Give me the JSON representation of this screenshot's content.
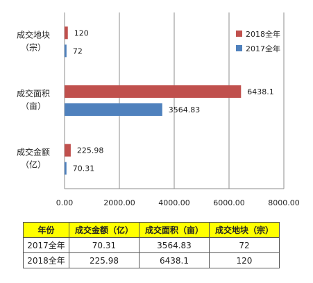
{
  "chart_data": {
    "type": "bar",
    "orientation": "horizontal",
    "categories": [
      "成交地块\n（宗）",
      "成交面积\n（亩）",
      "成交金额\n（亿）"
    ],
    "series": [
      {
        "name": "2018全年",
        "values": [
          120,
          6438.1,
          225.98
        ],
        "labels": [
          "120",
          "6438.1",
          "225.98"
        ],
        "color": "#c0504d"
      },
      {
        "name": "2017全年",
        "values": [
          72,
          3564.83,
          70.31
        ],
        "labels": [
          "72",
          "3564.83",
          "70.31"
        ],
        "color": "#4f81bd"
      }
    ],
    "xlim": [
      0,
      8000
    ],
    "xticks": [
      "0.00",
      "2000.00",
      "4000.00",
      "6000.00",
      "8000.00"
    ],
    "grid": true,
    "legend": "top-right"
  },
  "table": {
    "headers": [
      "年份",
      "成交金额（亿）",
      "成交面积（亩）",
      "成交地块（宗）"
    ],
    "rows": [
      [
        "2017全年",
        "70.31",
        "3564.83",
        "72"
      ],
      [
        "2018全年",
        "225.98",
        "6438.1",
        "120"
      ]
    ]
  }
}
